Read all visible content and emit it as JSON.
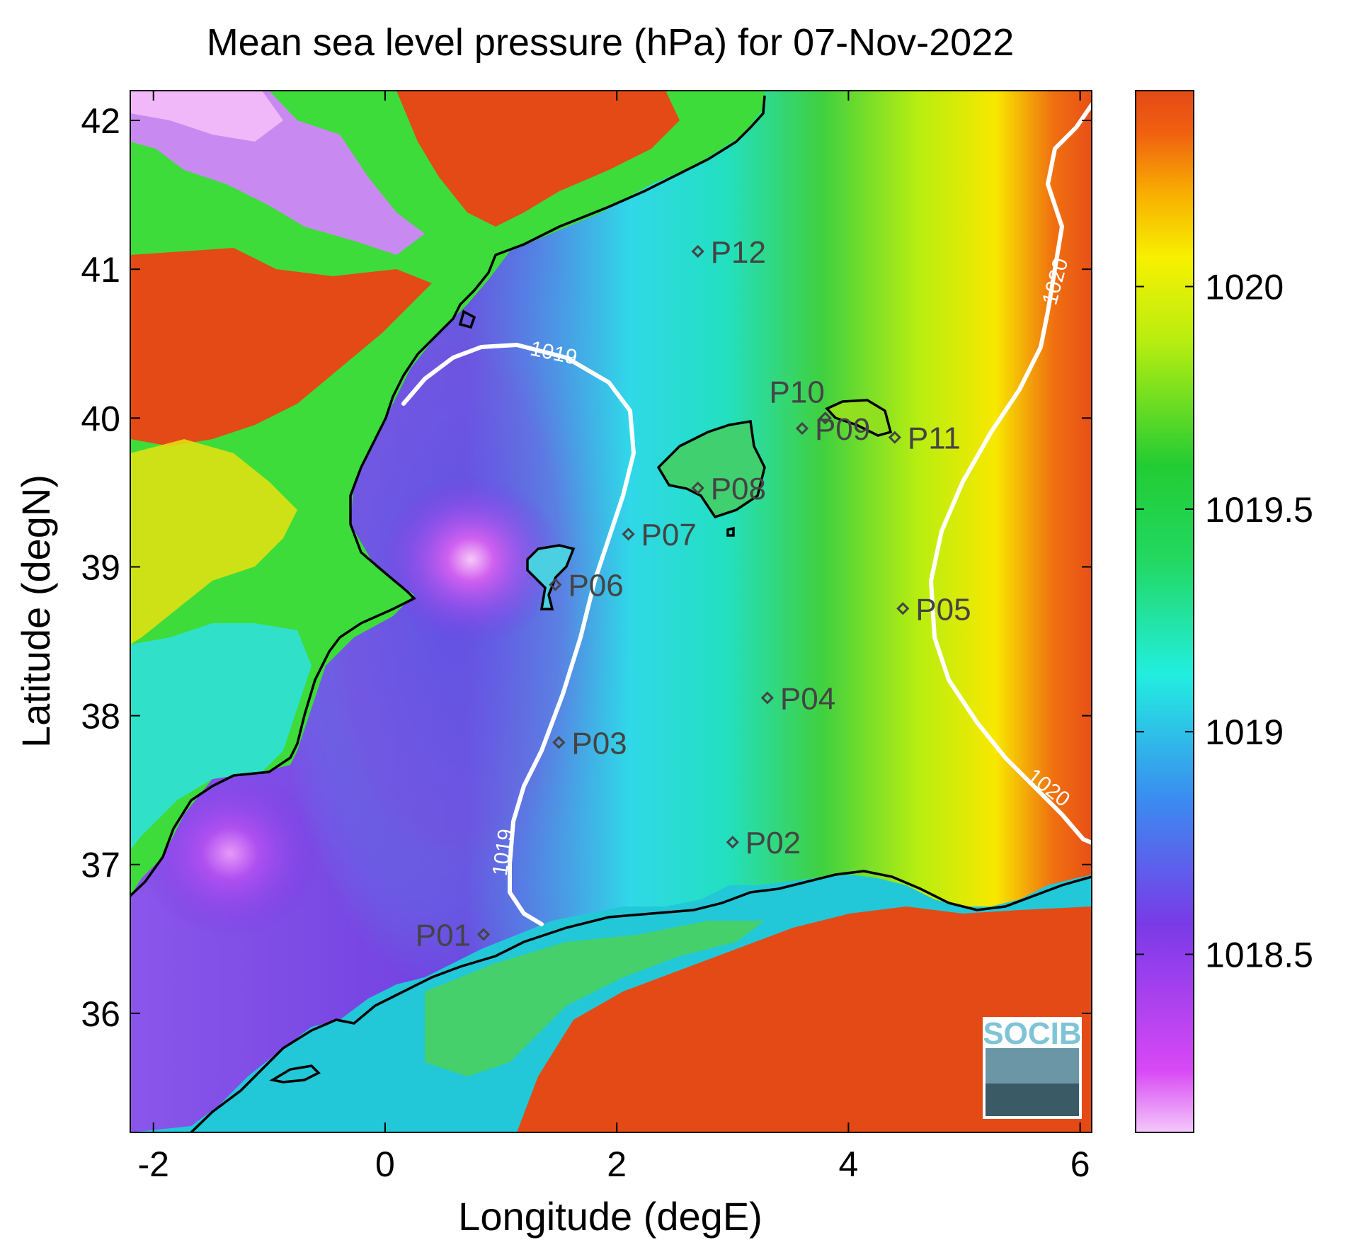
{
  "title": "Mean sea level pressure (hPa) for 07-Nov-2022",
  "xlabel": "Longitude (degE)",
  "ylabel": "Latitude (degN)",
  "xlim": [
    -2.2,
    6.1
  ],
  "ylim": [
    35.2,
    42.2
  ],
  "x_ticks": [
    "-2",
    "0",
    "2",
    "4",
    "6"
  ],
  "y_ticks": [
    "36",
    "37",
    "38",
    "39",
    "40",
    "41",
    "42"
  ],
  "colorbar": {
    "range": [
      1018.1,
      1020.44
    ],
    "ticks": [
      "1018.5",
      "1019",
      "1019.5",
      "1020"
    ]
  },
  "contours": [
    {
      "label": "1019",
      "color": "#ffffff"
    },
    {
      "label": "1020",
      "color": "#ffffff"
    }
  ],
  "stations": [
    {
      "name": "P01",
      "lon": 0.85,
      "lat": 36.53
    },
    {
      "name": "P02",
      "lon": 3.0,
      "lat": 37.15
    },
    {
      "name": "P03",
      "lon": 1.5,
      "lat": 37.82
    },
    {
      "name": "P04",
      "lon": 3.3,
      "lat": 38.12
    },
    {
      "name": "P05",
      "lon": 4.47,
      "lat": 38.72
    },
    {
      "name": "P06",
      "lon": 1.47,
      "lat": 38.88
    },
    {
      "name": "P07",
      "lon": 2.1,
      "lat": 39.22
    },
    {
      "name": "P08",
      "lon": 2.7,
      "lat": 39.53
    },
    {
      "name": "P09",
      "lon": 3.6,
      "lat": 39.93
    },
    {
      "name": "P10",
      "lon": 3.8,
      "lat": 40.0
    },
    {
      "name": "P11",
      "lon": 4.4,
      "lat": 39.87
    },
    {
      "name": "P12",
      "lon": 2.7,
      "lat": 41.12
    }
  ],
  "logo": "SOCIB",
  "colors": {
    "high": "#e34a16",
    "mid_high": "#f0f000",
    "mid": "#22cc33",
    "mid_low": "#22eee0",
    "low": "#7a3ae8",
    "lowest": "#f0b8f8"
  }
}
